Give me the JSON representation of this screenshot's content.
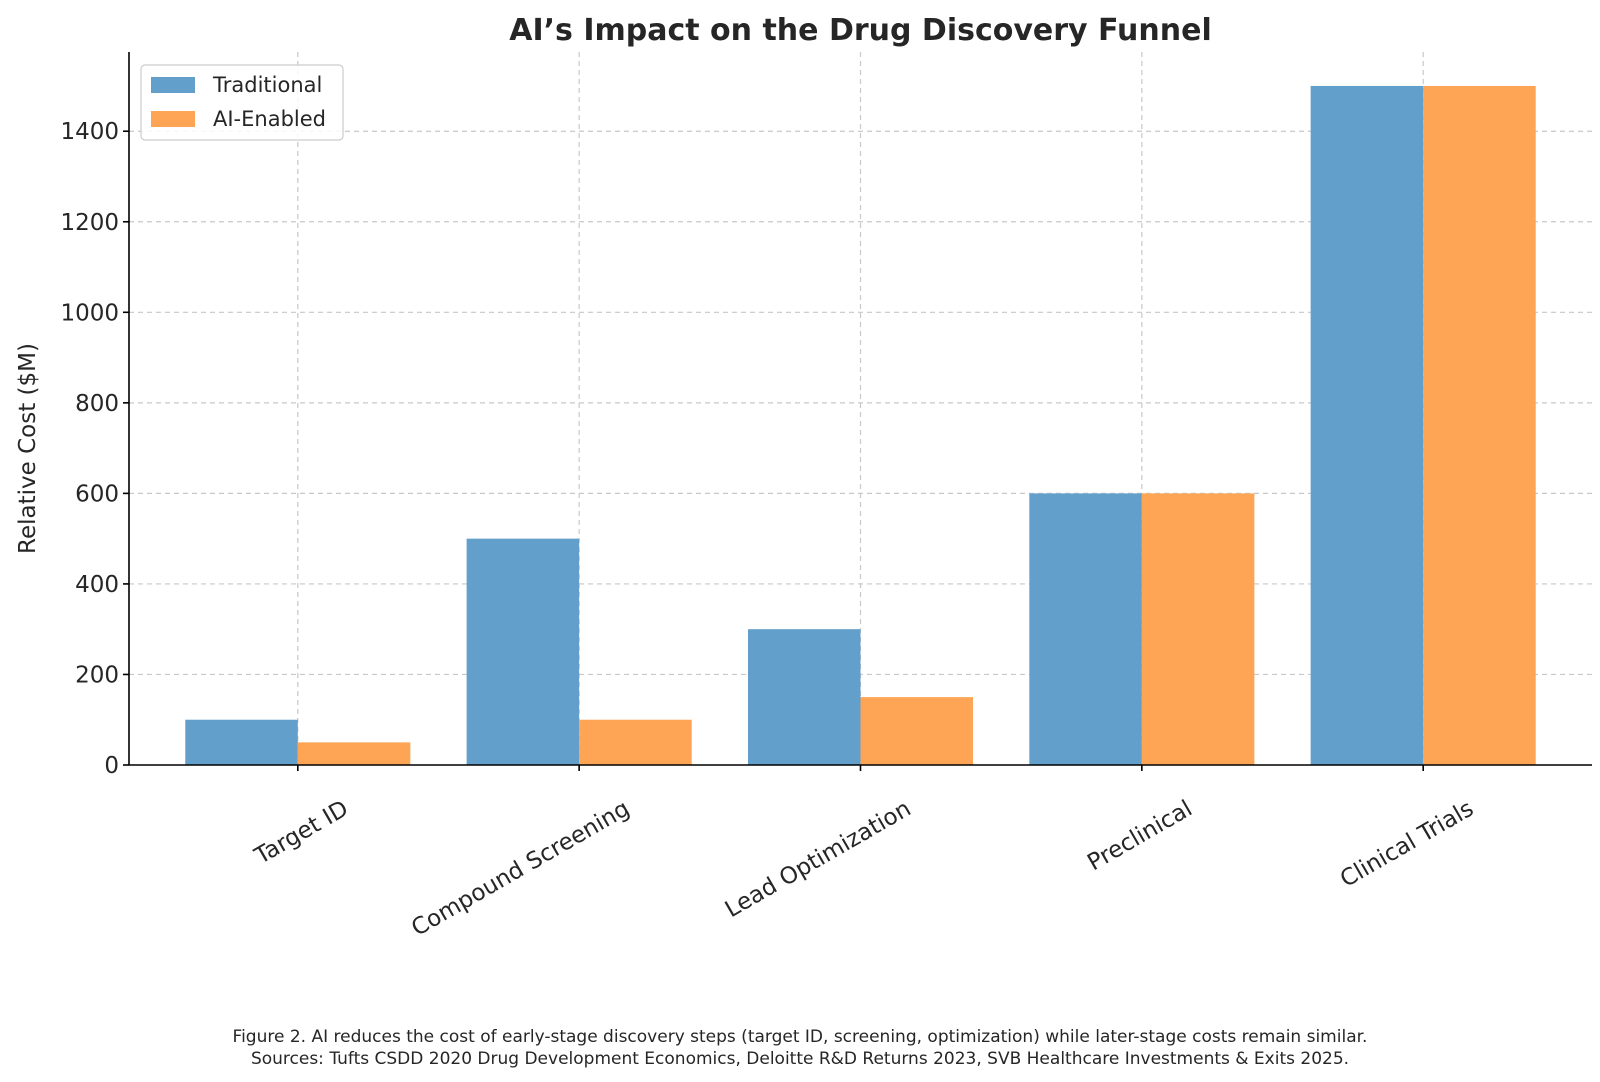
{
  "chart_data": {
    "type": "bar",
    "title": "AI’s Impact on the Drug Discovery Funnel",
    "xlabel": "",
    "ylabel": "Relative Cost ($M)",
    "categories": [
      "Target ID",
      "Compound Screening",
      "Lead Optimization",
      "Preclinical",
      "Clinical Trials"
    ],
    "series": [
      {
        "name": "Traditional",
        "values": [
          100,
          500,
          300,
          600,
          1500
        ],
        "color": "#62a0cb"
      },
      {
        "name": "AI-Enabled",
        "values": [
          50,
          100,
          150,
          600,
          1500
        ],
        "color": "#fea555"
      }
    ],
    "ylim": [
      0,
      1575
    ],
    "yticks": [
      0,
      200,
      400,
      600,
      800,
      1000,
      1200,
      1400
    ],
    "grid": true,
    "legend_position": "top-left",
    "xtick_rotation": "rotated"
  },
  "caption": {
    "line1": "Figure 2. AI reduces the cost of early-stage discovery steps (target ID, screening, optimization) while later-stage costs remain similar.",
    "line2": "Sources: Tufts CSDD 2020 Drug Development Economics, Deloitte R&D Returns 2023, SVB Healthcare Investments & Exits 2025."
  }
}
